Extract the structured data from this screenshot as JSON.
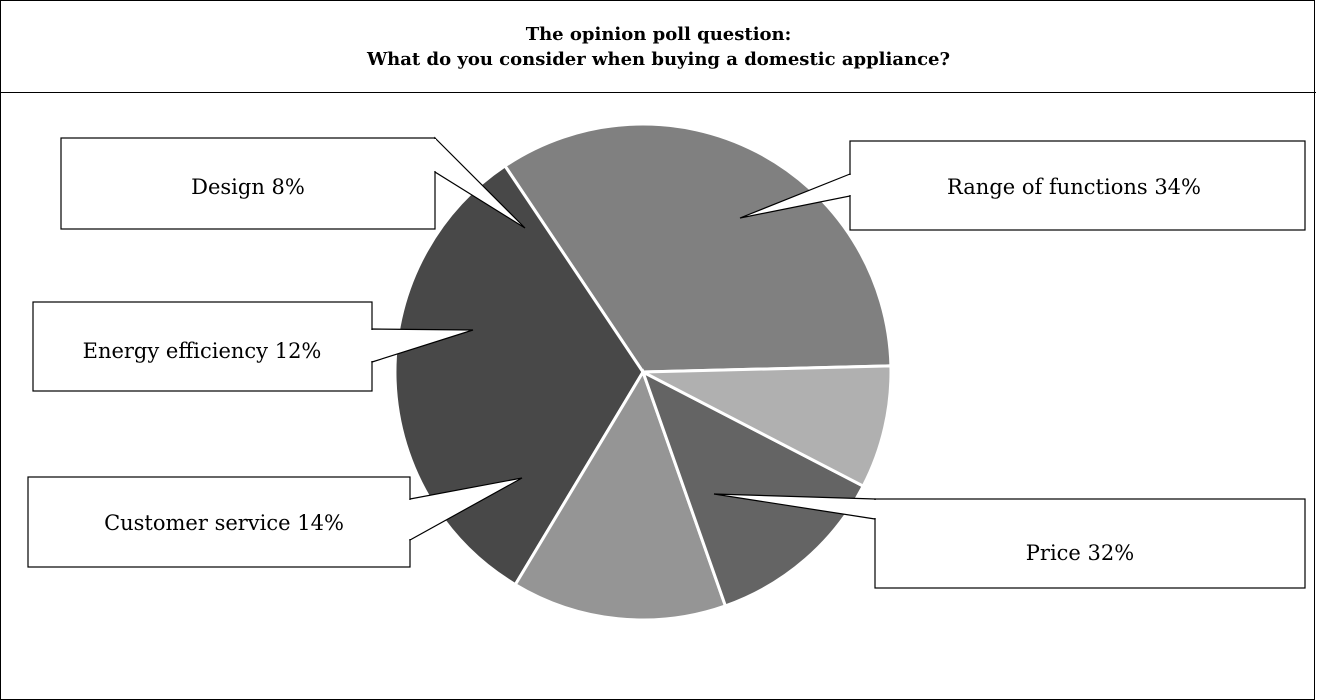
{
  "header": {
    "line1": "The opinion poll question:",
    "line2": "What do you consider when buying a domestic appliance?"
  },
  "chart_data": {
    "type": "pie",
    "title": "The opinion poll question: What do you consider when buying a domestic appliance?",
    "slices": [
      {
        "label": "Range of functions",
        "value": 34,
        "display": "Range of functions 34%",
        "color": "#808080"
      },
      {
        "label": "Price",
        "value": 32,
        "display": "Price 32%",
        "color": "#484848"
      },
      {
        "label": "Customer service",
        "value": 14,
        "display": "Customer service 14%",
        "color": "#959595"
      },
      {
        "label": "Energy efficiency",
        "value": 12,
        "display": "Energy efficiency 12%",
        "color": "#646464"
      },
      {
        "label": "Design",
        "value": 8,
        "display": "Design 8%",
        "color": "#b0b0b0"
      }
    ]
  }
}
